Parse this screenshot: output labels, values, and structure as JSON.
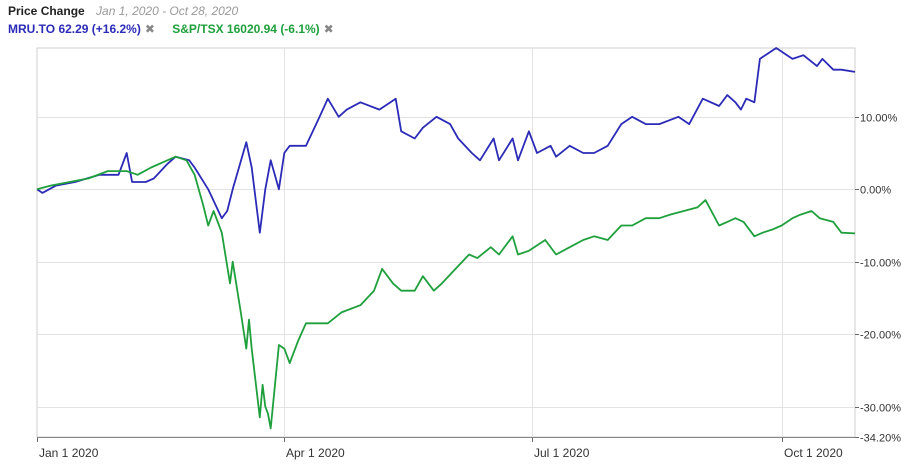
{
  "header": {
    "title": "Price Change",
    "date_range": "Jan 1, 2020 - Oct 28, 2020"
  },
  "legend": [
    {
      "label": "MRU.TO 62.29 (+16.2%)",
      "color": "#2b2bb8",
      "remove_icon": "close-x-icon",
      "remove_glyph": "✖"
    },
    {
      "label": "S&P/TSX 16020.94 (-6.1%)",
      "color": "#1fa03c",
      "remove_icon": "close-x-icon",
      "remove_glyph": "✖"
    }
  ],
  "chart_data": {
    "type": "line",
    "x_type": "date",
    "xlim": [
      "2020-01-01",
      "2020-10-28"
    ],
    "ylim": [
      -34.2,
      19.5
    ],
    "y_ticks": [
      {
        "value": 10,
        "label": "10.00%"
      },
      {
        "value": 0,
        "label": "0.00%"
      },
      {
        "value": -10,
        "label": "-10.00%"
      },
      {
        "value": -20,
        "label": "-20.00%"
      },
      {
        "value": -30,
        "label": "-30.00%"
      },
      {
        "value": -34.2,
        "label": "-34.20%"
      }
    ],
    "x_ticks": [
      {
        "value": "2020-01-01",
        "label": "Jan 1 2020"
      },
      {
        "value": "2020-04-01",
        "label": "Apr 1 2020"
      },
      {
        "value": "2020-07-01",
        "label": "Jul 1 2020"
      },
      {
        "value": "2020-10-01",
        "label": "Oct 1 2020"
      }
    ],
    "grid": true,
    "series": [
      {
        "name": "MRU.TO",
        "color": "#2b2bb8",
        "points": [
          [
            "2020-01-01",
            0.0
          ],
          [
            "2020-01-03",
            -0.5
          ],
          [
            "2020-01-08",
            0.5
          ],
          [
            "2020-01-15",
            1.0
          ],
          [
            "2020-01-24",
            2.0
          ],
          [
            "2020-01-31",
            2.0
          ],
          [
            "2020-02-03",
            5.0
          ],
          [
            "2020-02-05",
            1.0
          ],
          [
            "2020-02-10",
            1.0
          ],
          [
            "2020-02-13",
            1.5
          ],
          [
            "2020-02-18",
            3.5
          ],
          [
            "2020-02-21",
            4.5
          ],
          [
            "2020-02-26",
            4.0
          ],
          [
            "2020-02-28",
            3.0
          ],
          [
            "2020-03-04",
            0.0
          ],
          [
            "2020-03-09",
            -4.0
          ],
          [
            "2020-03-11",
            -3.0
          ],
          [
            "2020-03-13",
            0.0
          ],
          [
            "2020-03-18",
            6.5
          ],
          [
            "2020-03-20",
            3.0
          ],
          [
            "2020-03-23",
            -6.0
          ],
          [
            "2020-03-25",
            0.0
          ],
          [
            "2020-03-27",
            4.0
          ],
          [
            "2020-03-30",
            0.0
          ],
          [
            "2020-04-01",
            5.0
          ],
          [
            "2020-04-03",
            6.0
          ],
          [
            "2020-04-06",
            6.0
          ],
          [
            "2020-04-09",
            6.0
          ],
          [
            "2020-04-14",
            10.0
          ],
          [
            "2020-04-17",
            12.5
          ],
          [
            "2020-04-21",
            10.0
          ],
          [
            "2020-04-24",
            11.0
          ],
          [
            "2020-04-29",
            12.0
          ],
          [
            "2020-05-06",
            11.0
          ],
          [
            "2020-05-12",
            12.5
          ],
          [
            "2020-05-14",
            8.0
          ],
          [
            "2020-05-19",
            7.0
          ],
          [
            "2020-05-22",
            8.5
          ],
          [
            "2020-05-27",
            10.0
          ],
          [
            "2020-06-01",
            9.0
          ],
          [
            "2020-06-04",
            7.0
          ],
          [
            "2020-06-09",
            5.0
          ],
          [
            "2020-06-12",
            4.0
          ],
          [
            "2020-06-17",
            7.0
          ],
          [
            "2020-06-19",
            4.0
          ],
          [
            "2020-06-24",
            7.0
          ],
          [
            "2020-06-26",
            4.0
          ],
          [
            "2020-06-30",
            8.0
          ],
          [
            "2020-07-03",
            5.0
          ],
          [
            "2020-07-08",
            6.0
          ],
          [
            "2020-07-10",
            4.5
          ],
          [
            "2020-07-15",
            6.0
          ],
          [
            "2020-07-20",
            5.0
          ],
          [
            "2020-07-24",
            5.0
          ],
          [
            "2020-07-29",
            6.0
          ],
          [
            "2020-08-03",
            9.0
          ],
          [
            "2020-08-07",
            10.0
          ],
          [
            "2020-08-12",
            9.0
          ],
          [
            "2020-08-17",
            9.0
          ],
          [
            "2020-08-24",
            10.0
          ],
          [
            "2020-08-28",
            9.0
          ],
          [
            "2020-09-02",
            12.5
          ],
          [
            "2020-09-08",
            11.5
          ],
          [
            "2020-09-11",
            13.0
          ],
          [
            "2020-09-14",
            12.0
          ],
          [
            "2020-09-16",
            11.0
          ],
          [
            "2020-09-18",
            12.5
          ],
          [
            "2020-09-21",
            12.0
          ],
          [
            "2020-09-23",
            18.0
          ],
          [
            "2020-09-25",
            18.5
          ],
          [
            "2020-09-29",
            19.5
          ],
          [
            "2020-10-05",
            18.0
          ],
          [
            "2020-10-09",
            18.5
          ],
          [
            "2020-10-14",
            17.0
          ],
          [
            "2020-10-16",
            18.0
          ],
          [
            "2020-10-20",
            16.5
          ],
          [
            "2020-10-23",
            16.5
          ],
          [
            "2020-10-28",
            16.2
          ]
        ]
      },
      {
        "name": "S&P/TSX",
        "color": "#1fa03c",
        "points": [
          [
            "2020-01-01",
            0.0
          ],
          [
            "2020-01-06",
            0.5
          ],
          [
            "2020-01-13",
            1.0
          ],
          [
            "2020-01-20",
            1.5
          ],
          [
            "2020-01-27",
            2.5
          ],
          [
            "2020-02-03",
            2.5
          ],
          [
            "2020-02-07",
            2.0
          ],
          [
            "2020-02-12",
            3.0
          ],
          [
            "2020-02-18",
            4.0
          ],
          [
            "2020-02-21",
            4.5
          ],
          [
            "2020-02-25",
            4.0
          ],
          [
            "2020-02-28",
            2.0
          ],
          [
            "2020-03-02",
            -2.0
          ],
          [
            "2020-03-04",
            -5.0
          ],
          [
            "2020-03-06",
            -3.0
          ],
          [
            "2020-03-09",
            -6.0
          ],
          [
            "2020-03-12",
            -13.0
          ],
          [
            "2020-03-13",
            -10.0
          ],
          [
            "2020-03-16",
            -17.0
          ],
          [
            "2020-03-18",
            -22.0
          ],
          [
            "2020-03-19",
            -18.0
          ],
          [
            "2020-03-20",
            -22.0
          ],
          [
            "2020-03-23",
            -31.5
          ],
          [
            "2020-03-24",
            -27.0
          ],
          [
            "2020-03-25",
            -30.0
          ],
          [
            "2020-03-26",
            -31.0
          ],
          [
            "2020-03-27",
            -33.0
          ],
          [
            "2020-03-30",
            -21.5
          ],
          [
            "2020-04-01",
            -22.0
          ],
          [
            "2020-04-03",
            -24.0
          ],
          [
            "2020-04-06",
            -21.0
          ],
          [
            "2020-04-09",
            -18.5
          ],
          [
            "2020-04-17",
            -18.5
          ],
          [
            "2020-04-22",
            -17.0
          ],
          [
            "2020-04-29",
            -16.0
          ],
          [
            "2020-05-04",
            -14.0
          ],
          [
            "2020-05-07",
            -11.0
          ],
          [
            "2020-05-11",
            -13.0
          ],
          [
            "2020-05-14",
            -14.0
          ],
          [
            "2020-05-19",
            -14.0
          ],
          [
            "2020-05-22",
            -12.0
          ],
          [
            "2020-05-26",
            -14.0
          ],
          [
            "2020-05-29",
            -13.0
          ],
          [
            "2020-06-03",
            -11.0
          ],
          [
            "2020-06-08",
            -9.0
          ],
          [
            "2020-06-11",
            -9.5
          ],
          [
            "2020-06-16",
            -8.0
          ],
          [
            "2020-06-19",
            -9.0
          ],
          [
            "2020-06-24",
            -6.5
          ],
          [
            "2020-06-26",
            -9.0
          ],
          [
            "2020-06-30",
            -8.5
          ],
          [
            "2020-07-06",
            -7.0
          ],
          [
            "2020-07-10",
            -9.0
          ],
          [
            "2020-07-15",
            -8.0
          ],
          [
            "2020-07-20",
            -7.0
          ],
          [
            "2020-07-24",
            -6.5
          ],
          [
            "2020-07-29",
            -7.0
          ],
          [
            "2020-08-03",
            -5.0
          ],
          [
            "2020-08-07",
            -5.0
          ],
          [
            "2020-08-12",
            -4.0
          ],
          [
            "2020-08-17",
            -4.0
          ],
          [
            "2020-08-21",
            -3.5
          ],
          [
            "2020-08-26",
            -3.0
          ],
          [
            "2020-08-31",
            -2.5
          ],
          [
            "2020-09-03",
            -1.5
          ],
          [
            "2020-09-08",
            -5.0
          ],
          [
            "2020-09-11",
            -4.5
          ],
          [
            "2020-09-14",
            -4.0
          ],
          [
            "2020-09-17",
            -4.5
          ],
          [
            "2020-09-21",
            -6.5
          ],
          [
            "2020-09-24",
            -6.0
          ],
          [
            "2020-09-28",
            -5.5
          ],
          [
            "2020-10-01",
            -5.0
          ],
          [
            "2020-10-05",
            -4.0
          ],
          [
            "2020-10-08",
            -3.5
          ],
          [
            "2020-10-12",
            -3.0
          ],
          [
            "2020-10-15",
            -4.0
          ],
          [
            "2020-10-20",
            -4.5
          ],
          [
            "2020-10-23",
            -6.0
          ],
          [
            "2020-10-28",
            -6.1
          ]
        ]
      }
    ]
  }
}
